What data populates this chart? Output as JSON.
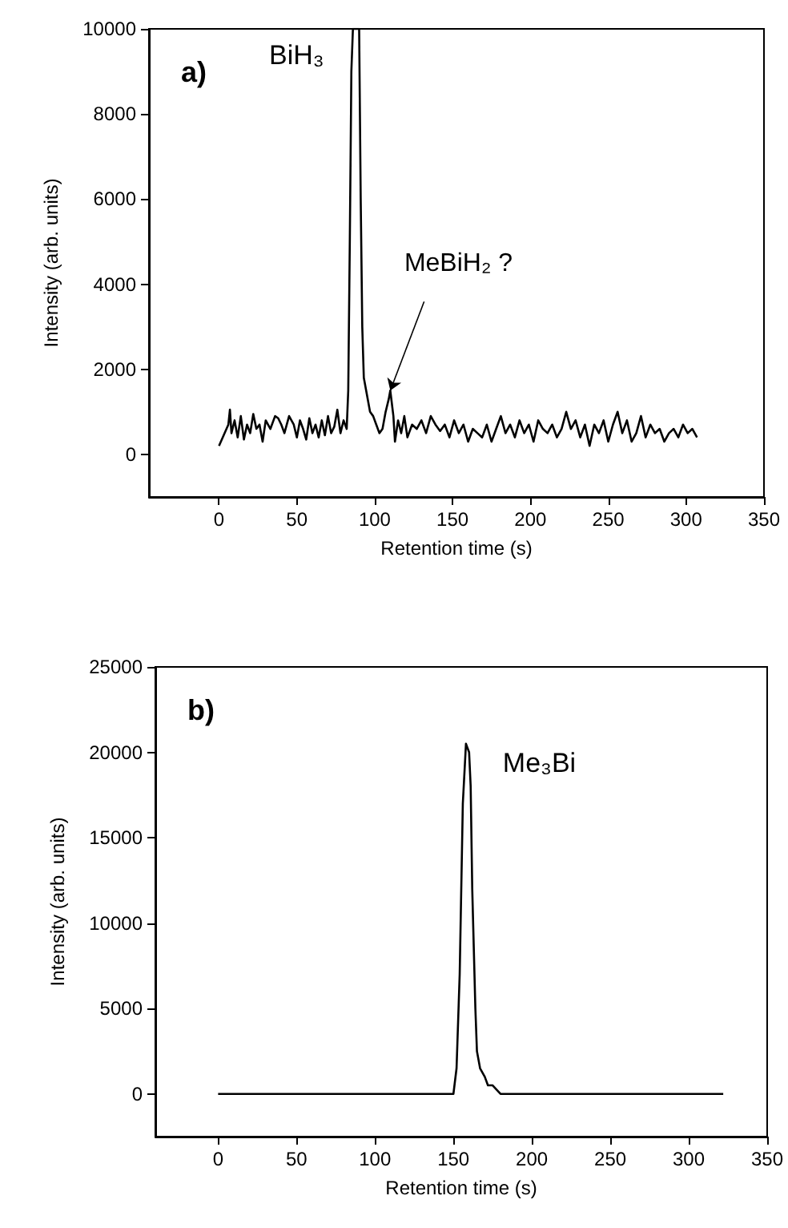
{
  "chart_data": [
    {
      "type": "line",
      "xlabel": "Retention time (s)",
      "ylabel": "Intensity (arb. units)",
      "xlim": [
        -45,
        350
      ],
      "xticks": [
        0,
        50,
        100,
        150,
        200,
        250,
        300,
        350
      ],
      "ylim": [
        -1000,
        10000
      ],
      "yticks": [
        0,
        2000,
        4000,
        6000,
        8000,
        10000
      ],
      "marker": "none",
      "annotations": [
        "a)",
        "BiH₃",
        {
          "text": "MeBiH₂ ?",
          "x": 110,
          "y": 1500
        }
      ],
      "series": [
        {
          "color": "#000000",
          "x": [
            0,
            3,
            6,
            7,
            8,
            10,
            12,
            14,
            16,
            18,
            20,
            22,
            24,
            26,
            28,
            30,
            33,
            36,
            38,
            40,
            42,
            45,
            48,
            50,
            52,
            54,
            56,
            58,
            60,
            62,
            64,
            66,
            68,
            70,
            72,
            74,
            76,
            78,
            80,
            82,
            83,
            84,
            85,
            86,
            90,
            91,
            92,
            93,
            95,
            97,
            99,
            101,
            103,
            105,
            107,
            109,
            110,
            112,
            113,
            115,
            117,
            119,
            121,
            124,
            127,
            130,
            133,
            136,
            139,
            142,
            145,
            148,
            151,
            154,
            157,
            160,
            163,
            166,
            169,
            172,
            175,
            178,
            181,
            184,
            187,
            190,
            193,
            196,
            199,
            202,
            205,
            208,
            211,
            214,
            217,
            220,
            223,
            226,
            229,
            232,
            235,
            238,
            241,
            244,
            247,
            250,
            253,
            256,
            259,
            262,
            265,
            268,
            271,
            274,
            277,
            280,
            283,
            286,
            289,
            292,
            295,
            298,
            301,
            304,
            307
          ],
          "values": [
            200,
            450,
            700,
            1050,
            500,
            800,
            400,
            900,
            350,
            700,
            500,
            950,
            600,
            700,
            300,
            800,
            600,
            900,
            850,
            700,
            500,
            900,
            700,
            400,
            800,
            600,
            350,
            850,
            500,
            700,
            400,
            800,
            450,
            900,
            500,
            650,
            1050,
            500,
            800,
            600,
            1500,
            5000,
            9000,
            10000,
            10000,
            6000,
            3000,
            1800,
            1400,
            1000,
            900,
            700,
            500,
            600,
            1000,
            1300,
            1500,
            900,
            300,
            800,
            500,
            900,
            400,
            700,
            600,
            800,
            500,
            900,
            700,
            550,
            700,
            400,
            800,
            500,
            700,
            300,
            600,
            500,
            400,
            700,
            300,
            600,
            900,
            500,
            700,
            400,
            800,
            500,
            700,
            300,
            800,
            600,
            500,
            700,
            400,
            600,
            1000,
            600,
            800,
            400,
            700,
            200,
            700,
            500,
            800,
            300,
            700,
            1000,
            500,
            800,
            300,
            500,
            900,
            400,
            700,
            500,
            600,
            300,
            500,
            600,
            400,
            700,
            500,
            600,
            400
          ]
        }
      ]
    },
    {
      "type": "line",
      "xlabel": "Retention time (s)",
      "ylabel": "Intensity (arb. units)",
      "xlim": [
        -40,
        350
      ],
      "xticks": [
        0,
        50,
        100,
        150,
        200,
        250,
        300,
        350
      ],
      "ylim": [
        -2500,
        25000
      ],
      "yticks": [
        0,
        5000,
        10000,
        15000,
        20000,
        25000
      ],
      "marker": "none",
      "annotations": [
        "b)",
        {
          "text": "Me₃Bi",
          "x": 158,
          "y": 20700
        }
      ],
      "series": [
        {
          "color": "#000000",
          "x": [
            0,
            5,
            10,
            15,
            20,
            30,
            40,
            47,
            55,
            65,
            75,
            85,
            95,
            105,
            115,
            125,
            135,
            145,
            150,
            152,
            154,
            156,
            158,
            160,
            161,
            162,
            164,
            165,
            167,
            170,
            172,
            175,
            180,
            185,
            190,
            200,
            210,
            220,
            230,
            240,
            250,
            260,
            270,
            280,
            290,
            300,
            310,
            322
          ],
          "values": [
            0,
            0,
            0,
            0,
            0,
            0,
            0,
            0,
            0,
            0,
            0,
            0,
            0,
            0,
            0,
            0,
            0,
            0,
            0,
            1500,
            7000,
            17000,
            20500,
            20000,
            18000,
            12000,
            5000,
            2500,
            1500,
            1000,
            500,
            500,
            0,
            0,
            0,
            0,
            0,
            0,
            0,
            0,
            0,
            0,
            0,
            0,
            0,
            0,
            0,
            0
          ]
        }
      ]
    }
  ]
}
